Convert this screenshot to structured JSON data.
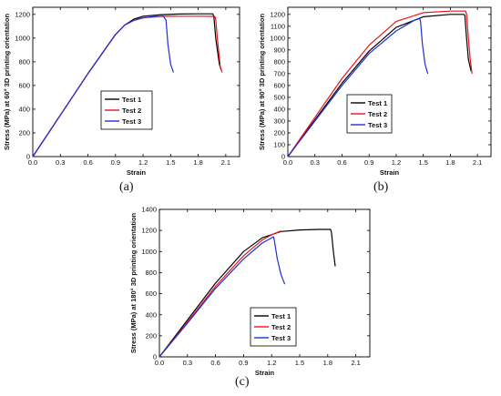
{
  "chart_data": [
    {
      "type": "line",
      "panel_label": "(a)",
      "xlabel": "Strain",
      "ylabel": "Stress (MPa) at 60° 3D printing orientation",
      "xlim": [
        0,
        2.25
      ],
      "ylim": [
        0,
        1260
      ],
      "xticks": [
        "0.0",
        "0.3",
        "0.6",
        "0.9",
        "1.2",
        "1.5",
        "1.8",
        "2.1"
      ],
      "yticks": [
        "0",
        "200",
        "400",
        "600",
        "800",
        "1000",
        "1200"
      ],
      "legend_position": "center-bottom",
      "series": [
        {
          "name": "Test 1",
          "color": "#000000",
          "x": [
            0,
            0.3,
            0.6,
            0.9,
            1.0,
            1.1,
            1.2,
            1.4,
            1.6,
            1.8,
            1.96,
            1.97,
            1.99,
            2.03,
            2.05
          ],
          "y": [
            0,
            350,
            700,
            1030,
            1110,
            1160,
            1185,
            1198,
            1203,
            1205,
            1205,
            1180,
            1000,
            780,
            730
          ]
        },
        {
          "name": "Test 2",
          "color": "#e8141c",
          "x": [
            0,
            0.3,
            0.6,
            0.9,
            1.0,
            1.1,
            1.2,
            1.4,
            1.6,
            1.8,
            1.98,
            1.99,
            2.01,
            2.04,
            2.06
          ],
          "y": [
            0,
            350,
            700,
            1030,
            1110,
            1150,
            1172,
            1183,
            1185,
            1185,
            1183,
            1160,
            980,
            760,
            710
          ]
        },
        {
          "name": "Test 3",
          "color": "#1f2fd6",
          "x": [
            0,
            0.3,
            0.6,
            0.9,
            1.0,
            1.1,
            1.2,
            1.3,
            1.42,
            1.45,
            1.47,
            1.5,
            1.53
          ],
          "y": [
            0,
            350,
            700,
            1030,
            1110,
            1150,
            1170,
            1180,
            1185,
            1150,
            950,
            780,
            710
          ]
        }
      ]
    },
    {
      "type": "line",
      "panel_label": "(b)",
      "xlabel": "Strain",
      "ylabel": "Stress (MPa) at 90° 3D printing orientation",
      "xlim": [
        0,
        2.25
      ],
      "ylim": [
        0,
        1260
      ],
      "xticks": [
        "0.0",
        "0.3",
        "0.6",
        "0.9",
        "1.2",
        "1.5",
        "1.8",
        "2.1"
      ],
      "yticks": [
        "0",
        "100",
        "200",
        "300",
        "400",
        "500",
        "600",
        "700",
        "800",
        "900",
        "1000",
        "1100",
        "1200"
      ],
      "legend_position": "center-right",
      "series": [
        {
          "name": "Test 1",
          "color": "#000000",
          "x": [
            0,
            0.3,
            0.6,
            0.9,
            1.2,
            1.5,
            1.8,
            1.95,
            1.96,
            1.98,
            2.0,
            2.03
          ],
          "y": [
            0,
            310,
            620,
            890,
            1090,
            1180,
            1200,
            1200,
            1190,
            1000,
            820,
            720
          ]
        },
        {
          "name": "Test 2",
          "color": "#e8141c",
          "x": [
            0,
            0.3,
            0.6,
            0.9,
            1.2,
            1.5,
            1.8,
            1.97,
            1.98,
            2.0,
            2.02,
            2.04
          ],
          "y": [
            0,
            330,
            660,
            940,
            1140,
            1215,
            1228,
            1228,
            1200,
            1000,
            820,
            700
          ]
        },
        {
          "name": "Test 3",
          "color": "#1f2fd6",
          "x": [
            0,
            0.3,
            0.6,
            0.9,
            1.2,
            1.4,
            1.46,
            1.47,
            1.49,
            1.52,
            1.55
          ],
          "y": [
            0,
            300,
            600,
            870,
            1060,
            1150,
            1165,
            1140,
            950,
            780,
            700
          ]
        }
      ]
    },
    {
      "type": "line",
      "panel_label": "(c)",
      "xlabel": "Strain",
      "ylabel": "Stress (MPa) at 180° 3D printing orientation",
      "xlim": [
        0,
        2.25
      ],
      "ylim": [
        0,
        1400
      ],
      "xticks": [
        "0.0",
        "0.3",
        "0.6",
        "0.9",
        "1.2",
        "1.5",
        "1.8",
        "2.1"
      ],
      "yticks": [
        "0",
        "200",
        "400",
        "600",
        "800",
        "1000",
        "1200",
        "1400"
      ],
      "legend_position": "center-right",
      "series": [
        {
          "name": "Test 1",
          "color": "#000000",
          "x": [
            0,
            0.3,
            0.6,
            0.9,
            1.1,
            1.3,
            1.5,
            1.7,
            1.83,
            1.84,
            1.86,
            1.88
          ],
          "y": [
            0,
            350,
            700,
            1000,
            1130,
            1190,
            1205,
            1210,
            1210,
            1180,
            1000,
            860
          ]
        },
        {
          "name": "Test 2",
          "color": "#e8141c",
          "x": [
            0,
            0.3,
            0.6,
            0.9,
            1.1,
            1.2,
            1.3
          ],
          "y": [
            0,
            330,
            670,
            960,
            1110,
            1160,
            1195
          ]
        },
        {
          "name": "Test 3",
          "color": "#1f2fd6",
          "x": [
            0,
            0.3,
            0.6,
            0.9,
            1.1,
            1.22,
            1.23,
            1.26,
            1.3,
            1.34
          ],
          "y": [
            0,
            320,
            650,
            930,
            1080,
            1140,
            1100,
            930,
            780,
            690
          ]
        }
      ]
    }
  ]
}
